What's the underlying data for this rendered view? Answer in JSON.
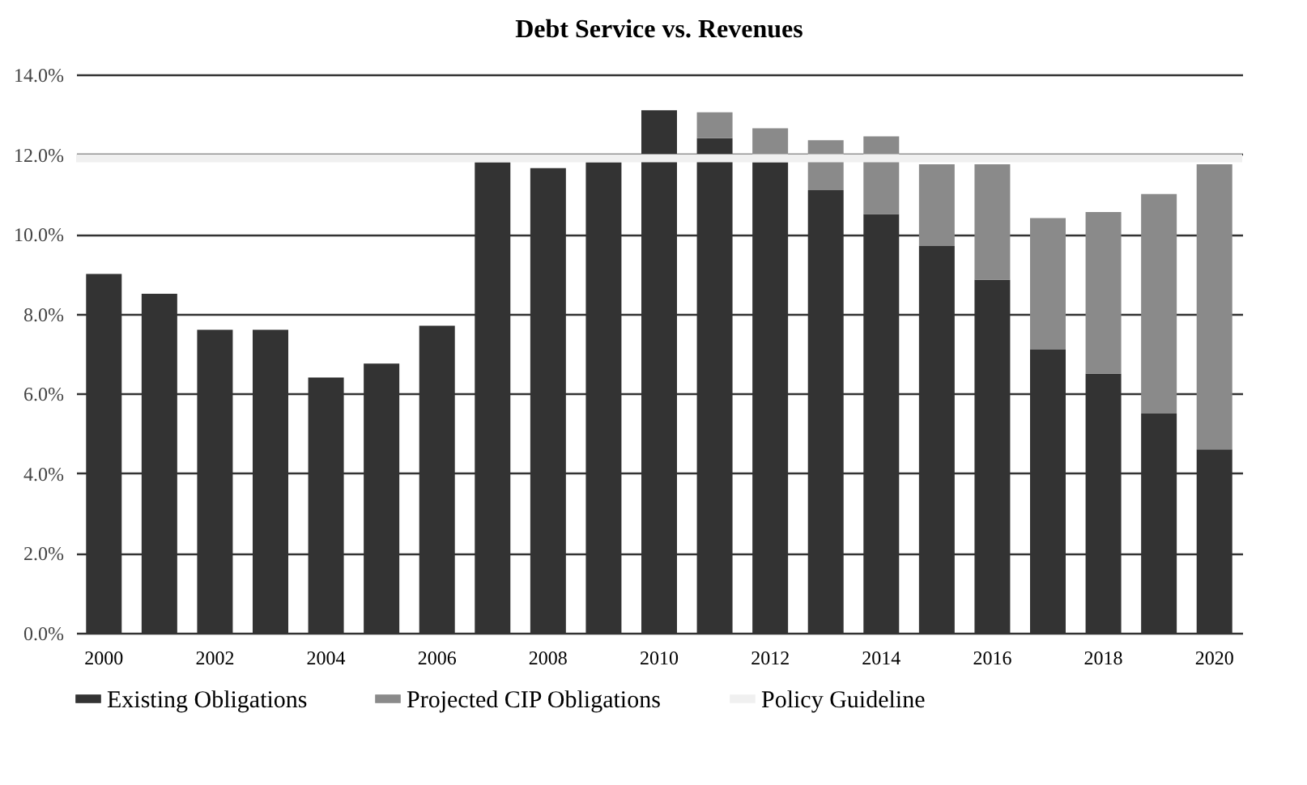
{
  "chart_data": {
    "type": "bar",
    "title": "Debt Service vs. Revenues",
    "stacked": true,
    "categories": [
      "2000",
      null,
      "2002",
      null,
      "2004",
      null,
      "2006",
      null,
      "2008",
      null,
      "2010",
      null,
      "2012",
      null,
      "2014",
      null,
      "2016",
      null,
      "2018",
      null,
      "2020"
    ],
    "series": [
      {
        "name": "Existing Obligations",
        "color": "#333333",
        "values": [
          9.0,
          8.5,
          7.6,
          7.6,
          6.4,
          6.75,
          7.7,
          11.8,
          11.65,
          11.8,
          13.1,
          12.4,
          11.8,
          11.1,
          10.5,
          9.7,
          8.85,
          7.1,
          6.5,
          5.5,
          4.6
        ]
      },
      {
        "name": "Projected CIP Obligations",
        "color": "#8a8a8a",
        "values": [
          0,
          0,
          0,
          0,
          0,
          0,
          0,
          0,
          0,
          0,
          0,
          0.65,
          0.85,
          1.25,
          1.95,
          2.05,
          2.9,
          3.3,
          4.05,
          5.5,
          7.15
        ]
      }
    ],
    "ref_lines": [
      {
        "axis": "y",
        "value": 11.9,
        "label": "Policy Guideline",
        "color": "#f0f0f0"
      }
    ],
    "ylim": [
      0,
      14
    ],
    "yticks": [
      {
        "value": 0,
        "label": "0.0%"
      },
      {
        "value": 2,
        "label": "2.0%"
      },
      {
        "value": 4,
        "label": "4.0%"
      },
      {
        "value": 6,
        "label": "6.0%"
      },
      {
        "value": 8,
        "label": "8.0%"
      },
      {
        "value": 10,
        "label": "10.0%"
      },
      {
        "value": 12,
        "label": "12.0%"
      },
      {
        "value": 14,
        "label": "14.0%"
      }
    ],
    "grid": "y",
    "legend": "bottom"
  }
}
